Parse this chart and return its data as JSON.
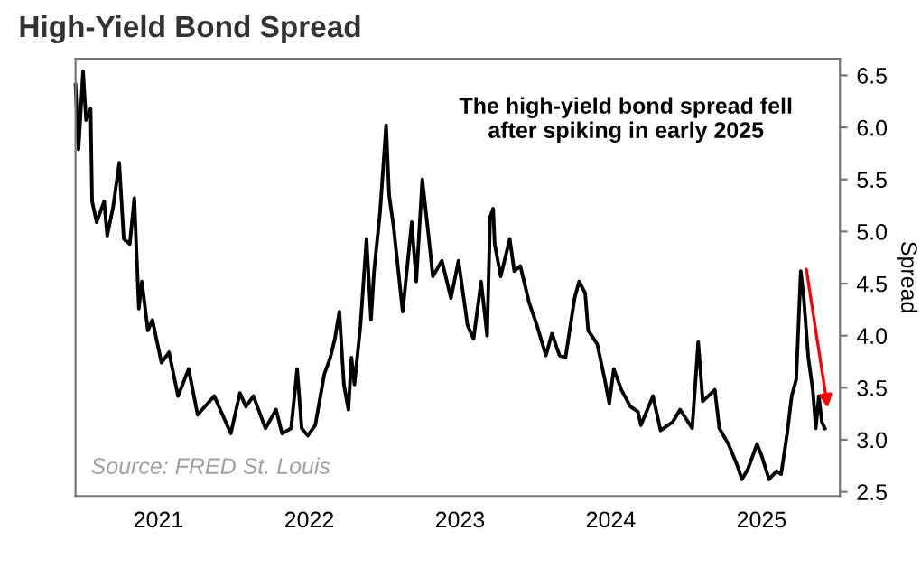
{
  "chart_data": {
    "type": "line",
    "title": "High-Yield Bond Spread",
    "ylabel": "Spread",
    "annotations": [
      "The high-yield bond spread fell\nafter spiking in early 2025",
      "Source: FRED St. Louis"
    ],
    "x": [
      2020.45,
      2020.47,
      2020.5,
      2020.52,
      2020.55,
      2020.56,
      2020.59,
      2020.64,
      2020.66,
      2020.7,
      2020.74,
      2020.77,
      2020.81,
      2020.84,
      2020.87,
      2020.89,
      2020.93,
      2020.96,
      2021.02,
      2021.07,
      2021.13,
      2021.2,
      2021.26,
      2021.37,
      2021.48,
      2021.54,
      2021.58,
      2021.63,
      2021.71,
      2021.78,
      2021.82,
      2021.88,
      2021.92,
      2021.95,
      2021.99,
      2022.04,
      2022.1,
      2022.14,
      2022.17,
      2022.2,
      2022.23,
      2022.26,
      2022.28,
      2022.3,
      2022.34,
      2022.38,
      2022.41,
      2022.43,
      2022.47,
      2022.51,
      2022.53,
      2022.56,
      2022.62,
      2022.68,
      2022.71,
      2022.75,
      2022.79,
      2022.82,
      2022.88,
      2022.94,
      2022.99,
      2023.05,
      2023.09,
      2023.14,
      2023.18,
      2023.2,
      2023.22,
      2023.23,
      2023.27,
      2023.33,
      2023.36,
      2023.4,
      2023.46,
      2023.51,
      2023.57,
      2023.61,
      2023.66,
      2023.7,
      2023.76,
      2023.79,
      2023.83,
      2023.85,
      2023.91,
      2023.96,
      2023.99,
      2024.02,
      2024.07,
      2024.13,
      2024.18,
      2024.2,
      2024.28,
      2024.33,
      2024.41,
      2024.46,
      2024.54,
      2024.58,
      2024.61,
      2024.69,
      2024.72,
      2024.78,
      2024.84,
      2024.87,
      2024.91,
      2024.97,
      2025.0,
      2025.05,
      2025.1,
      2025.13,
      2025.17,
      2025.2,
      2025.23,
      2025.26,
      2025.28,
      2025.31,
      2025.34,
      2025.36,
      2025.38,
      2025.4,
      2025.42
    ],
    "series": [
      {
        "color": "#000000",
        "values": [
          6.41,
          5.79,
          6.54,
          6.07,
          6.18,
          5.29,
          5.09,
          5.29,
          4.96,
          5.24,
          5.66,
          4.93,
          4.88,
          5.32,
          4.26,
          4.52,
          4.05,
          4.15,
          3.74,
          3.84,
          3.42,
          3.68,
          3.24,
          3.42,
          3.06,
          3.45,
          3.32,
          3.42,
          3.11,
          3.29,
          3.06,
          3.11,
          3.68,
          3.11,
          3.04,
          3.14,
          3.63,
          3.79,
          3.97,
          4.23,
          3.53,
          3.29,
          3.79,
          3.53,
          4.1,
          4.93,
          4.15,
          4.62,
          5.19,
          6.02,
          5.35,
          5.04,
          4.23,
          5.09,
          4.52,
          5.5,
          4.98,
          4.57,
          4.72,
          4.36,
          4.72,
          4.1,
          3.97,
          4.52,
          4.0,
          5.14,
          5.22,
          4.88,
          4.57,
          4.93,
          4.62,
          4.67,
          4.31,
          4.1,
          3.81,
          4.02,
          3.81,
          3.79,
          4.36,
          4.52,
          4.41,
          4.05,
          3.92,
          3.58,
          3.35,
          3.68,
          3.48,
          3.32,
          3.27,
          3.14,
          3.42,
          3.09,
          3.17,
          3.29,
          3.11,
          3.94,
          3.37,
          3.48,
          3.11,
          2.96,
          2.75,
          2.62,
          2.72,
          2.96,
          2.85,
          2.62,
          2.7,
          2.67,
          3.06,
          3.42,
          3.58,
          4.62,
          4.36,
          3.79,
          3.48,
          3.11,
          3.42,
          3.17,
          3.11
        ]
      }
    ],
    "xlim": [
      2020.45,
      2025.52
    ],
    "xticks": [
      2021,
      2022,
      2023,
      2024,
      2025
    ],
    "ylim": [
      2.46,
      6.66
    ],
    "yticks": [
      2.5,
      {
        "value": 3,
        "label": "3.0"
      },
      3.5,
      {
        "value": 4,
        "label": "4.0"
      },
      4.5,
      {
        "value": 5,
        "label": "5.0"
      },
      5.5,
      {
        "value": 6,
        "label": "6.0"
      },
      6.5
    ],
    "grid": false,
    "legend": false,
    "marker": "none",
    "line_style": "solid"
  }
}
